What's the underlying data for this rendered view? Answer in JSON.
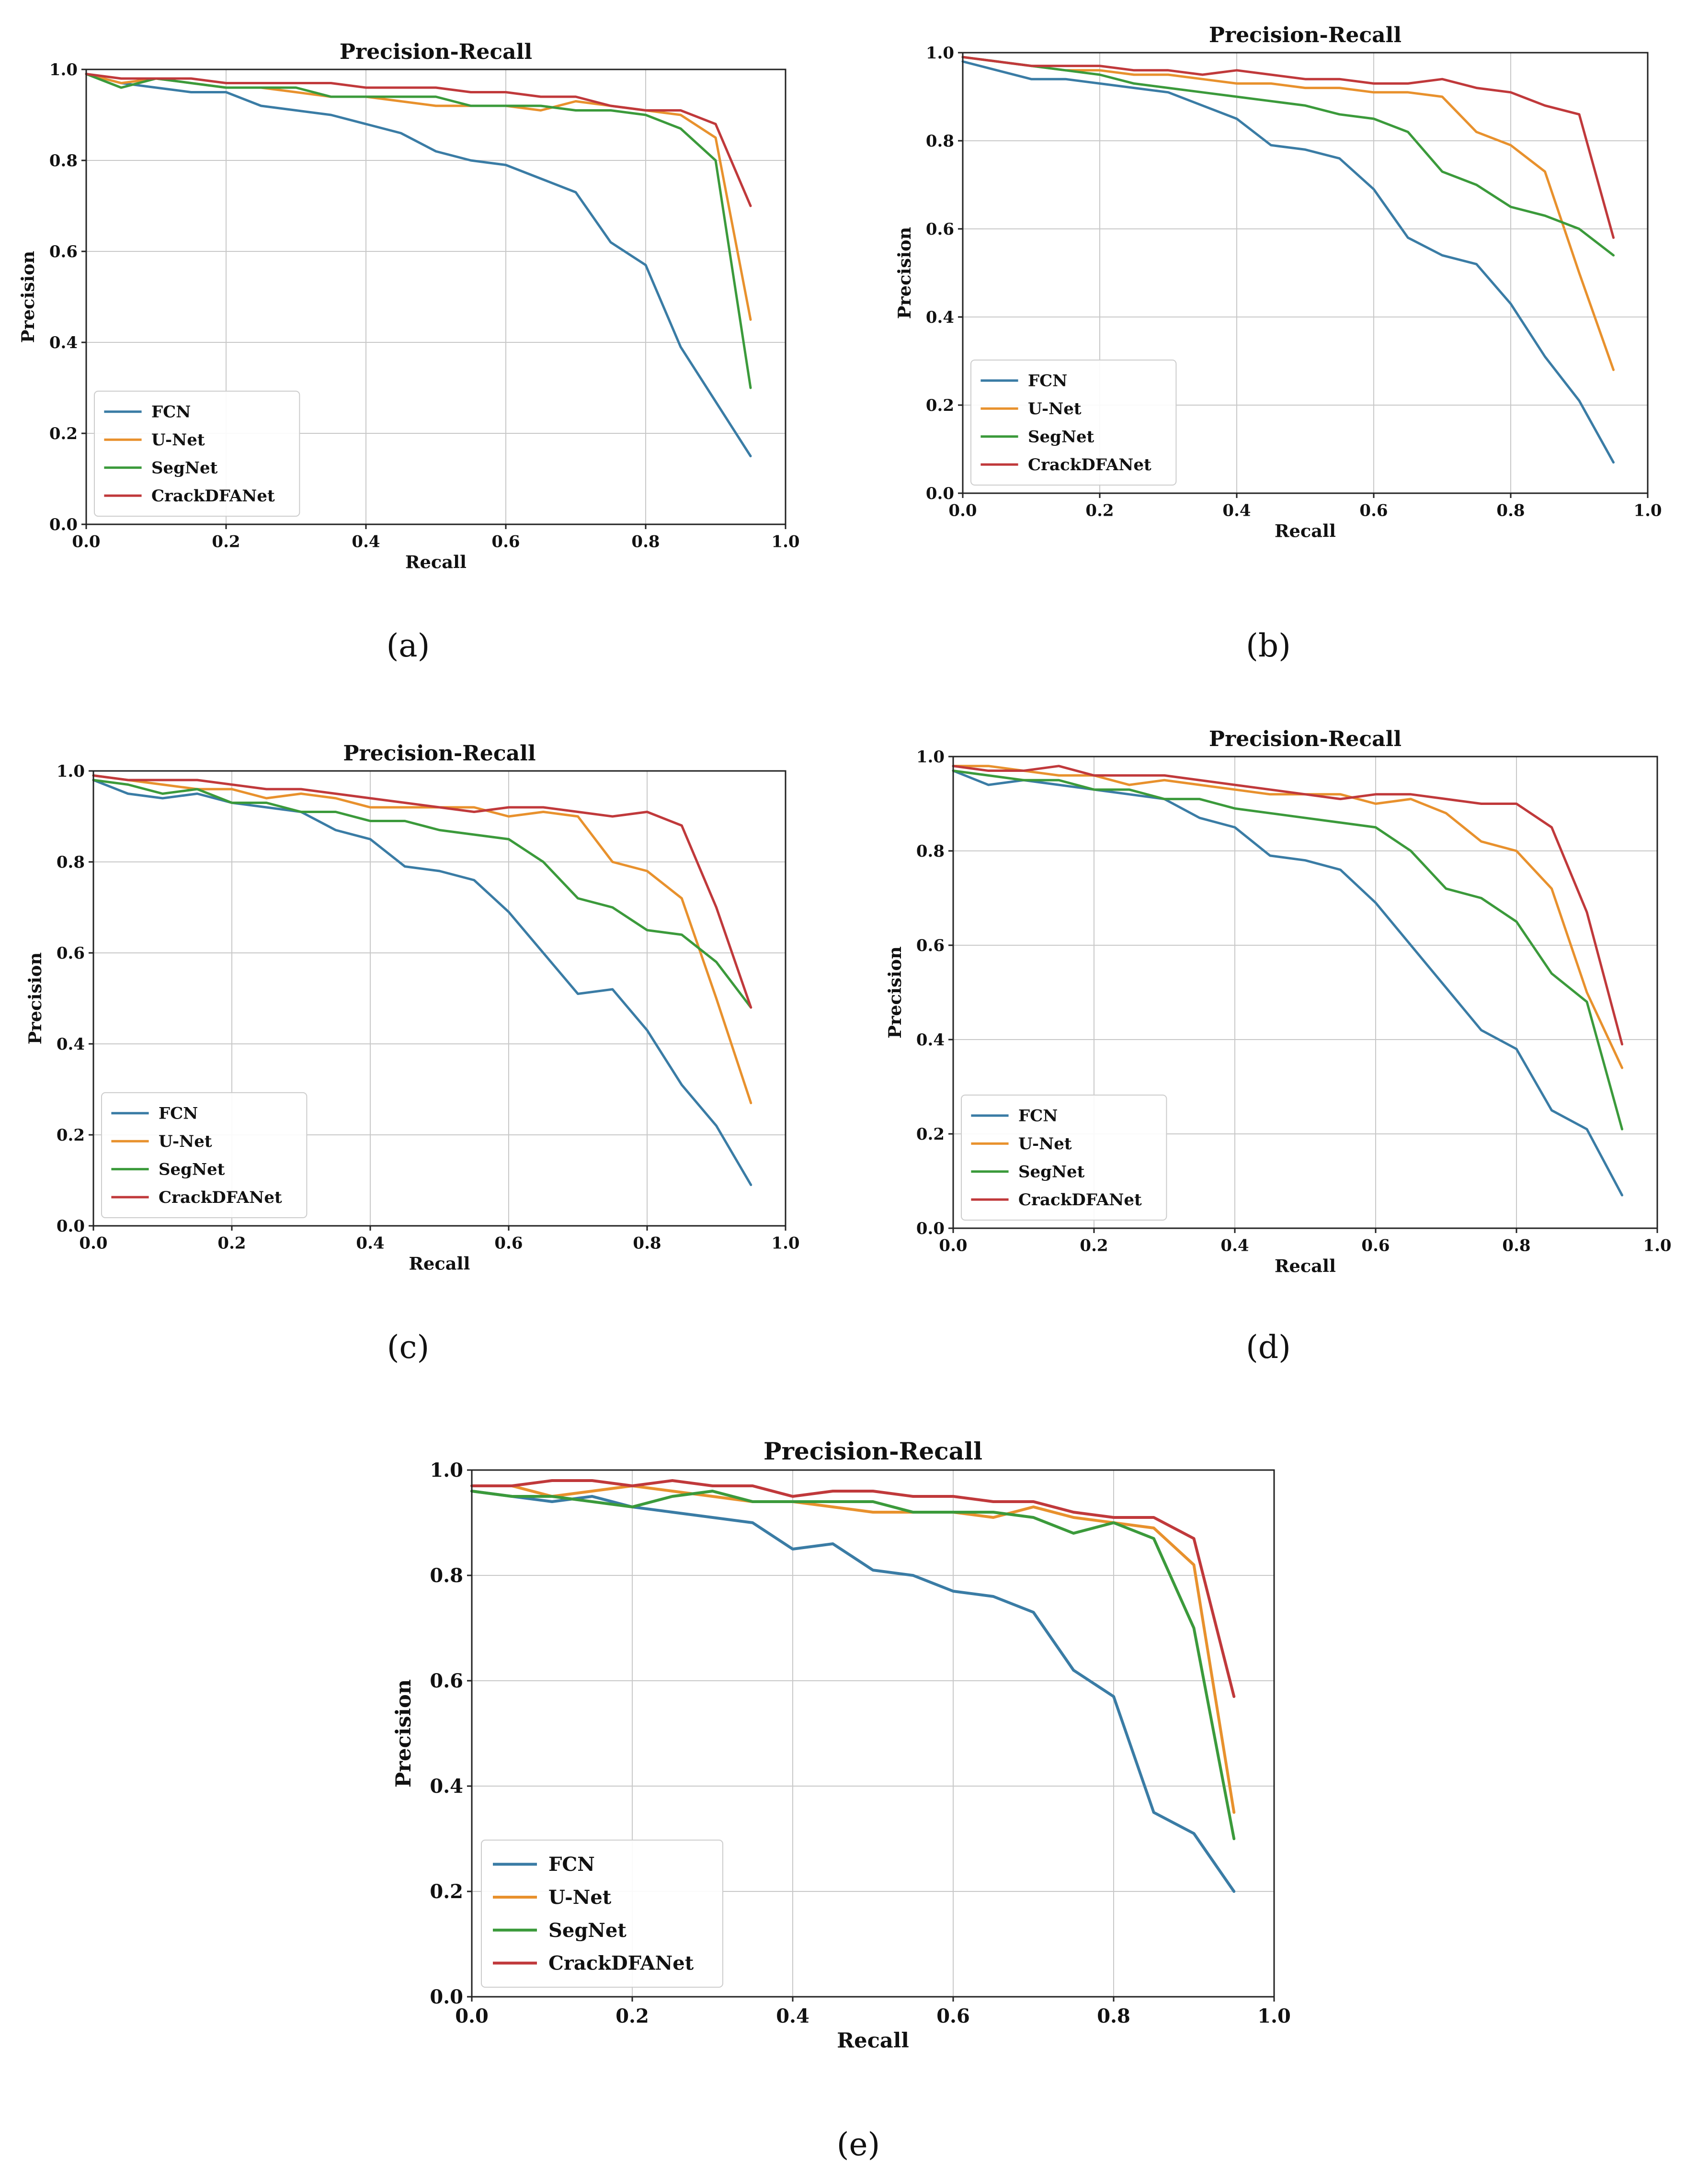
{
  "colors": {
    "FCN": "#3a7ca5",
    "U-Net": "#e8912d",
    "SegNet": "#3b9a3b",
    "CrackDFANet": "#c0393b"
  },
  "chart_data": [
    {
      "type": "line",
      "panel": "(a)",
      "title": "Precision-Recall",
      "xlabel": "Recall",
      "ylabel": "Precision",
      "xlim": [
        0,
        1
      ],
      "ylim": [
        0,
        1
      ],
      "grid": true,
      "legend": "lower-left",
      "xticks": [
        "0.0",
        "0.2",
        "0.4",
        "0.6",
        "0.8",
        "1.0"
      ],
      "yticks": [
        "0.0",
        "0.2",
        "0.4",
        "0.6",
        "0.8",
        "1.0"
      ],
      "x": [
        0,
        0.05,
        0.1,
        0.15,
        0.2,
        0.25,
        0.3,
        0.35,
        0.4,
        0.45,
        0.5,
        0.55,
        0.6,
        0.65,
        0.7,
        0.75,
        0.8,
        0.85,
        0.9,
        0.95
      ],
      "series": [
        {
          "name": "FCN",
          "values": [
            0.99,
            0.97,
            0.96,
            0.95,
            0.95,
            0.92,
            0.91,
            0.9,
            0.88,
            0.86,
            0.82,
            0.8,
            0.79,
            0.76,
            0.73,
            0.62,
            0.57,
            0.39,
            0.27,
            0.15
          ]
        },
        {
          "name": "U-Net",
          "values": [
            0.99,
            0.97,
            0.98,
            0.97,
            0.96,
            0.96,
            0.95,
            0.94,
            0.94,
            0.93,
            0.92,
            0.92,
            0.92,
            0.91,
            0.93,
            0.92,
            0.91,
            0.9,
            0.85,
            0.45
          ]
        },
        {
          "name": "SegNet",
          "values": [
            0.99,
            0.96,
            0.98,
            0.97,
            0.96,
            0.96,
            0.96,
            0.94,
            0.94,
            0.94,
            0.94,
            0.92,
            0.92,
            0.92,
            0.91,
            0.91,
            0.9,
            0.87,
            0.8,
            0.3
          ]
        },
        {
          "name": "CrackDFANet",
          "values": [
            0.99,
            0.98,
            0.98,
            0.98,
            0.97,
            0.97,
            0.97,
            0.97,
            0.96,
            0.96,
            0.96,
            0.95,
            0.95,
            0.94,
            0.94,
            0.92,
            0.91,
            0.91,
            0.88,
            0.7
          ]
        }
      ]
    },
    {
      "type": "line",
      "panel": "(b)",
      "title": "Precision-Recall",
      "xlabel": "Recall",
      "ylabel": "Precision",
      "xlim": [
        0,
        1
      ],
      "ylim": [
        0,
        1
      ],
      "grid": true,
      "legend": "lower-left",
      "xticks": [
        "0.0",
        "0.2",
        "0.4",
        "0.6",
        "0.8",
        "1.0"
      ],
      "yticks": [
        "0.0",
        "0.2",
        "0.4",
        "0.6",
        "0.8",
        "1.0"
      ],
      "x": [
        0,
        0.05,
        0.1,
        0.15,
        0.2,
        0.25,
        0.3,
        0.35,
        0.4,
        0.45,
        0.5,
        0.55,
        0.6,
        0.65,
        0.7,
        0.75,
        0.8,
        0.85,
        0.9,
        0.95
      ],
      "series": [
        {
          "name": "FCN",
          "values": [
            0.98,
            0.96,
            0.94,
            0.94,
            0.93,
            0.92,
            0.91,
            0.88,
            0.85,
            0.79,
            0.78,
            0.76,
            0.69,
            0.58,
            0.54,
            0.52,
            0.43,
            0.31,
            0.21,
            0.07
          ]
        },
        {
          "name": "U-Net",
          "values": [
            0.99,
            0.98,
            0.97,
            0.96,
            0.96,
            0.95,
            0.95,
            0.94,
            0.93,
            0.93,
            0.92,
            0.92,
            0.91,
            0.91,
            0.9,
            0.82,
            0.79,
            0.73,
            0.5,
            0.28
          ]
        },
        {
          "name": "SegNet",
          "values": [
            0.99,
            0.98,
            0.97,
            0.96,
            0.95,
            0.93,
            0.92,
            0.91,
            0.9,
            0.89,
            0.88,
            0.86,
            0.85,
            0.82,
            0.73,
            0.7,
            0.65,
            0.63,
            0.6,
            0.54
          ]
        },
        {
          "name": "CrackDFANet",
          "values": [
            0.99,
            0.98,
            0.97,
            0.97,
            0.97,
            0.96,
            0.96,
            0.95,
            0.96,
            0.95,
            0.94,
            0.94,
            0.93,
            0.93,
            0.94,
            0.92,
            0.91,
            0.88,
            0.86,
            0.58
          ]
        }
      ]
    },
    {
      "type": "line",
      "panel": "(c)",
      "title": "Precision-Recall",
      "xlabel": "Recall",
      "ylabel": "Precision",
      "xlim": [
        0,
        1
      ],
      "ylim": [
        0,
        1
      ],
      "grid": true,
      "legend": "lower-left",
      "xticks": [
        "0.0",
        "0.2",
        "0.4",
        "0.6",
        "0.8",
        "1.0"
      ],
      "yticks": [
        "0.0",
        "0.2",
        "0.4",
        "0.6",
        "0.8",
        "1.0"
      ],
      "x": [
        0,
        0.05,
        0.1,
        0.15,
        0.2,
        0.25,
        0.3,
        0.35,
        0.4,
        0.45,
        0.5,
        0.55,
        0.6,
        0.65,
        0.7,
        0.75,
        0.8,
        0.85,
        0.9,
        0.95
      ],
      "series": [
        {
          "name": "FCN",
          "values": [
            0.98,
            0.95,
            0.94,
            0.95,
            0.93,
            0.92,
            0.91,
            0.87,
            0.85,
            0.79,
            0.78,
            0.76,
            0.69,
            0.6,
            0.51,
            0.52,
            0.43,
            0.31,
            0.22,
            0.09
          ]
        },
        {
          "name": "U-Net",
          "values": [
            0.99,
            0.98,
            0.97,
            0.96,
            0.96,
            0.94,
            0.95,
            0.94,
            0.92,
            0.92,
            0.92,
            0.92,
            0.9,
            0.91,
            0.9,
            0.8,
            0.78,
            0.72,
            0.5,
            0.27
          ]
        },
        {
          "name": "SegNet",
          "values": [
            0.98,
            0.97,
            0.95,
            0.96,
            0.93,
            0.93,
            0.91,
            0.91,
            0.89,
            0.89,
            0.87,
            0.86,
            0.85,
            0.8,
            0.72,
            0.7,
            0.65,
            0.64,
            0.58,
            0.48
          ]
        },
        {
          "name": "CrackDFANet",
          "values": [
            0.99,
            0.98,
            0.98,
            0.98,
            0.97,
            0.96,
            0.96,
            0.95,
            0.94,
            0.93,
            0.92,
            0.91,
            0.92,
            0.92,
            0.91,
            0.9,
            0.91,
            0.88,
            0.7,
            0.48
          ]
        }
      ]
    },
    {
      "type": "line",
      "panel": "(d)",
      "title": "Precision-Recall",
      "xlabel": "Recall",
      "ylabel": "Precision",
      "xlim": [
        0,
        1
      ],
      "ylim": [
        0,
        1
      ],
      "grid": true,
      "legend": "lower-left",
      "xticks": [
        "0.0",
        "0.2",
        "0.4",
        "0.6",
        "0.8",
        "1.0"
      ],
      "yticks": [
        "0.0",
        "0.2",
        "0.4",
        "0.6",
        "0.8",
        "1.0"
      ],
      "x": [
        0,
        0.05,
        0.1,
        0.15,
        0.2,
        0.25,
        0.3,
        0.35,
        0.4,
        0.45,
        0.5,
        0.55,
        0.6,
        0.65,
        0.7,
        0.75,
        0.8,
        0.85,
        0.9,
        0.95
      ],
      "series": [
        {
          "name": "FCN",
          "values": [
            0.97,
            0.94,
            0.95,
            0.94,
            0.93,
            0.92,
            0.91,
            0.87,
            0.85,
            0.79,
            0.78,
            0.76,
            0.69,
            0.6,
            0.51,
            0.42,
            0.38,
            0.25,
            0.21,
            0.07
          ]
        },
        {
          "name": "U-Net",
          "values": [
            0.98,
            0.98,
            0.97,
            0.96,
            0.96,
            0.94,
            0.95,
            0.94,
            0.93,
            0.92,
            0.92,
            0.92,
            0.9,
            0.91,
            0.88,
            0.82,
            0.8,
            0.72,
            0.5,
            0.34
          ]
        },
        {
          "name": "SegNet",
          "values": [
            0.97,
            0.96,
            0.95,
            0.95,
            0.93,
            0.93,
            0.91,
            0.91,
            0.89,
            0.88,
            0.87,
            0.86,
            0.85,
            0.8,
            0.72,
            0.7,
            0.65,
            0.54,
            0.48,
            0.21
          ]
        },
        {
          "name": "CrackDFANet",
          "values": [
            0.98,
            0.97,
            0.97,
            0.98,
            0.96,
            0.96,
            0.96,
            0.95,
            0.94,
            0.93,
            0.92,
            0.91,
            0.92,
            0.92,
            0.91,
            0.9,
            0.9,
            0.85,
            0.67,
            0.39
          ]
        }
      ]
    },
    {
      "type": "line",
      "panel": "(e)",
      "title": "Precision-Recall",
      "xlabel": "Recall",
      "ylabel": "Precision",
      "xlim": [
        0,
        1
      ],
      "ylim": [
        0,
        1
      ],
      "grid": true,
      "legend": "lower-left",
      "xticks": [
        "0.0",
        "0.2",
        "0.4",
        "0.6",
        "0.8",
        "1.0"
      ],
      "yticks": [
        "0.0",
        "0.2",
        "0.4",
        "0.6",
        "0.8",
        "1.0"
      ],
      "x": [
        0,
        0.05,
        0.1,
        0.15,
        0.2,
        0.25,
        0.3,
        0.35,
        0.4,
        0.45,
        0.5,
        0.55,
        0.6,
        0.65,
        0.7,
        0.75,
        0.8,
        0.85,
        0.9,
        0.95
      ],
      "series": [
        {
          "name": "FCN",
          "values": [
            0.96,
            0.95,
            0.94,
            0.95,
            0.93,
            0.92,
            0.91,
            0.9,
            0.85,
            0.86,
            0.81,
            0.8,
            0.77,
            0.76,
            0.73,
            0.62,
            0.57,
            0.35,
            0.31,
            0.2
          ]
        },
        {
          "name": "U-Net",
          "values": [
            0.97,
            0.97,
            0.95,
            0.96,
            0.97,
            0.96,
            0.95,
            0.94,
            0.94,
            0.93,
            0.92,
            0.92,
            0.92,
            0.91,
            0.93,
            0.91,
            0.9,
            0.89,
            0.82,
            0.35
          ]
        },
        {
          "name": "SegNet",
          "values": [
            0.96,
            0.95,
            0.95,
            0.94,
            0.93,
            0.95,
            0.96,
            0.94,
            0.94,
            0.94,
            0.94,
            0.92,
            0.92,
            0.92,
            0.91,
            0.88,
            0.9,
            0.87,
            0.7,
            0.3
          ]
        },
        {
          "name": "CrackDFANet",
          "values": [
            0.97,
            0.97,
            0.98,
            0.98,
            0.97,
            0.98,
            0.97,
            0.97,
            0.95,
            0.96,
            0.96,
            0.95,
            0.95,
            0.94,
            0.94,
            0.92,
            0.91,
            0.91,
            0.87,
            0.57
          ]
        }
      ]
    }
  ]
}
